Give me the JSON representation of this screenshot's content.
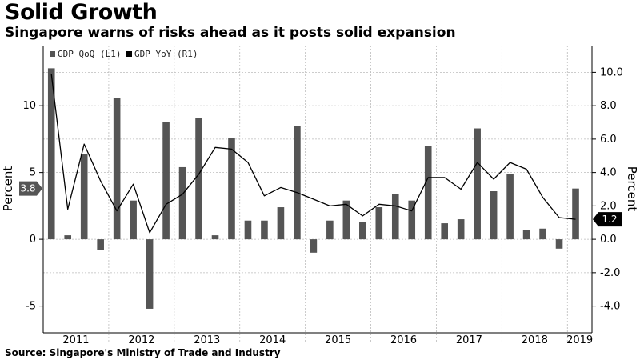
{
  "title": "Solid Growth",
  "subtitle": "Singapore warns of risks ahead as it posts solid expansion",
  "source": "Source: Singapore's Ministry of Trade and Industry",
  "colors": {
    "bar": "#555555",
    "line": "#000000",
    "grid": "#bbbbbb",
    "flag_left": "#555555",
    "flag_right": "#000000"
  },
  "chart_data": {
    "type": "bar",
    "ylabel_left": "Percent",
    "ylabel_right": "Percent",
    "ylim_left": [
      -7,
      14.5
    ],
    "ylim_right": [
      -5.6,
      11.6
    ],
    "yticks_left": [
      -5,
      0,
      5,
      10
    ],
    "yticks_left_labels": [
      "-5",
      "0",
      "5",
      "10"
    ],
    "yticks_right": [
      -4,
      -2,
      0,
      2,
      4,
      6,
      8,
      10
    ],
    "yticks_right_labels": [
      "-4.0",
      "-2.0",
      "0.0",
      "2.0",
      "4.0",
      "6.0",
      "8.0",
      "10.0"
    ],
    "grid": true,
    "legend_position": "top-left",
    "years": [
      "2011",
      "2012",
      "2013",
      "2014",
      "2015",
      "2016",
      "2017",
      "2018",
      "2019"
    ],
    "quarters_per_year": [
      4,
      4,
      4,
      4,
      4,
      4,
      4,
      4,
      1
    ],
    "series": [
      {
        "name": "GDP QoQ (L1)",
        "axis": "left",
        "kind": "bar",
        "values": [
          12.8,
          0.3,
          6.4,
          -0.8,
          10.6,
          2.9,
          -5.2,
          8.8,
          5.4,
          9.1,
          0.3,
          7.6,
          1.4,
          1.4,
          2.4,
          8.5,
          -1.0,
          1.4,
          2.9,
          1.3,
          2.4,
          3.4,
          2.9,
          7.0,
          1.2,
          1.5,
          8.3,
          3.6,
          4.9,
          0.7,
          0.8,
          -0.7,
          3.8
        ]
      },
      {
        "name": "GDP YoY (R1)",
        "axis": "right",
        "kind": "line",
        "values": [
          9.9,
          1.8,
          5.7,
          3.5,
          1.7,
          3.3,
          0.4,
          2.1,
          2.7,
          3.9,
          5.5,
          5.4,
          4.6,
          2.6,
          3.1,
          2.8,
          2.4,
          2.0,
          2.1,
          1.4,
          2.1,
          2.0,
          1.7,
          3.7,
          3.7,
          3.0,
          4.6,
          3.6,
          4.6,
          4.2,
          2.5,
          1.3,
          1.2
        ]
      }
    ],
    "last_value_labels": {
      "left": "3.8",
      "right": "1.2"
    }
  }
}
